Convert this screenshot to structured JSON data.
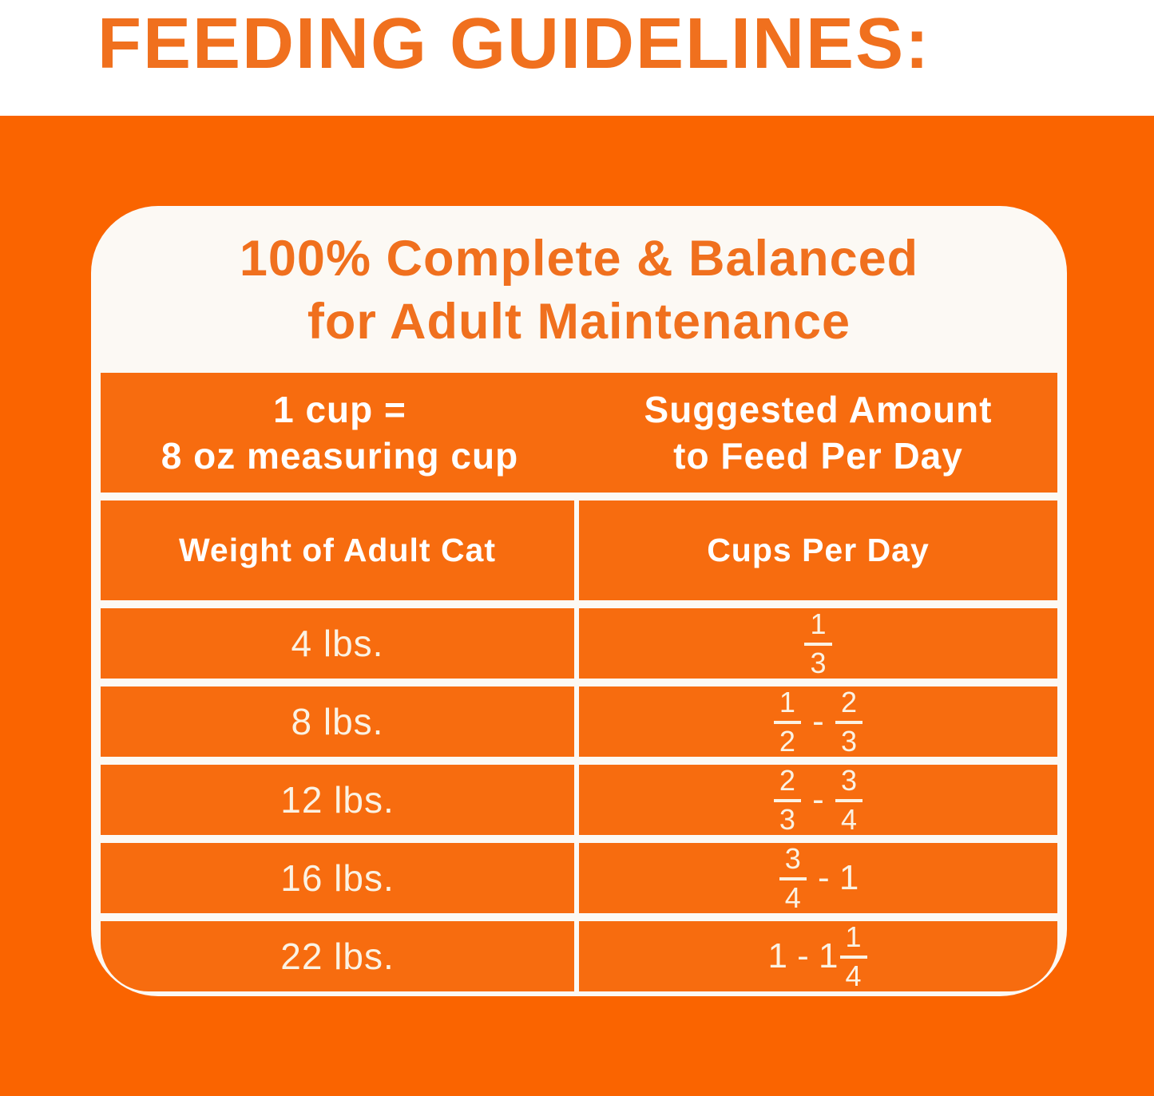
{
  "page": {
    "title": "FEEDING GUIDELINES:"
  },
  "colors": {
    "background_orange": "#FA6400",
    "cell_orange": "#F76C0F",
    "accent_orange": "#F0701E",
    "text_white": "#FFFFFF",
    "text_cream": "#FBF2E3",
    "card_white": "#FCF9F4"
  },
  "card": {
    "title_line1": "100% Complete & Balanced",
    "title_line2": "for Adult Maintenance"
  },
  "table": {
    "header": {
      "left_line1": "1 cup =",
      "left_line2": "8 oz measuring cup",
      "right_line1": "Suggested Amount",
      "right_line2": "to Feed Per Day"
    },
    "columns": {
      "left": "Weight of Adult Cat",
      "right": "Cups Per Day"
    },
    "rows": [
      {
        "weight": "4 lbs.",
        "cups_text": "1/3",
        "cups_tokens": [
          {
            "type": "frac",
            "num": "1",
            "den": "3"
          }
        ]
      },
      {
        "weight": "8 lbs.",
        "cups_text": "1/2 - 2/3",
        "cups_tokens": [
          {
            "type": "frac",
            "num": "1",
            "den": "2"
          },
          {
            "type": "text",
            "value": " - "
          },
          {
            "type": "frac",
            "num": "2",
            "den": "3"
          }
        ]
      },
      {
        "weight": "12 lbs.",
        "cups_text": "2/3 - 3/4",
        "cups_tokens": [
          {
            "type": "frac",
            "num": "2",
            "den": "3"
          },
          {
            "type": "text",
            "value": " - "
          },
          {
            "type": "frac",
            "num": "3",
            "den": "4"
          }
        ]
      },
      {
        "weight": "16 lbs.",
        "cups_text": "3/4 - 1",
        "cups_tokens": [
          {
            "type": "frac",
            "num": "3",
            "den": "4"
          },
          {
            "type": "text",
            "value": " - 1"
          }
        ]
      },
      {
        "weight": "22 lbs.",
        "cups_text": "1 - 1 1/4",
        "cups_tokens": [
          {
            "type": "text",
            "value": "1 - 1"
          },
          {
            "type": "frac",
            "num": "1",
            "den": "4"
          }
        ]
      }
    ]
  }
}
